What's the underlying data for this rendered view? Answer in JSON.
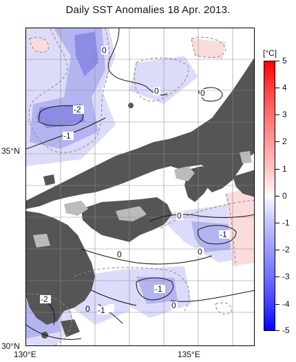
{
  "title": "Daily SST Anomalies 18 Apr. 2013.",
  "axes": {
    "lat_labels": [
      "35°N",
      "30°N"
    ],
    "lon_labels": [
      "130°E",
      "135°E"
    ]
  },
  "colorbar": {
    "unit": "[°C]",
    "ticks": [
      "5",
      "4",
      "3",
      "2",
      "1",
      "0",
      "-1",
      "-2",
      "-3",
      "-4",
      "-5"
    ]
  },
  "contour_labels": [
    "0",
    "0",
    "-2",
    "-1",
    "0",
    "-1",
    "0",
    "0",
    "-1",
    "-1",
    "0",
    "-1",
    "0",
    "-2"
  ],
  "colors": {
    "land": "#555555",
    "lake": "#bbbbbb",
    "cool_light": "#dcdcfa",
    "cool_mid": "#b4b4f0",
    "cool_strong": "#8c8ce6",
    "warm_light": "#fadcdc",
    "grid": "#8c8c8c"
  }
}
